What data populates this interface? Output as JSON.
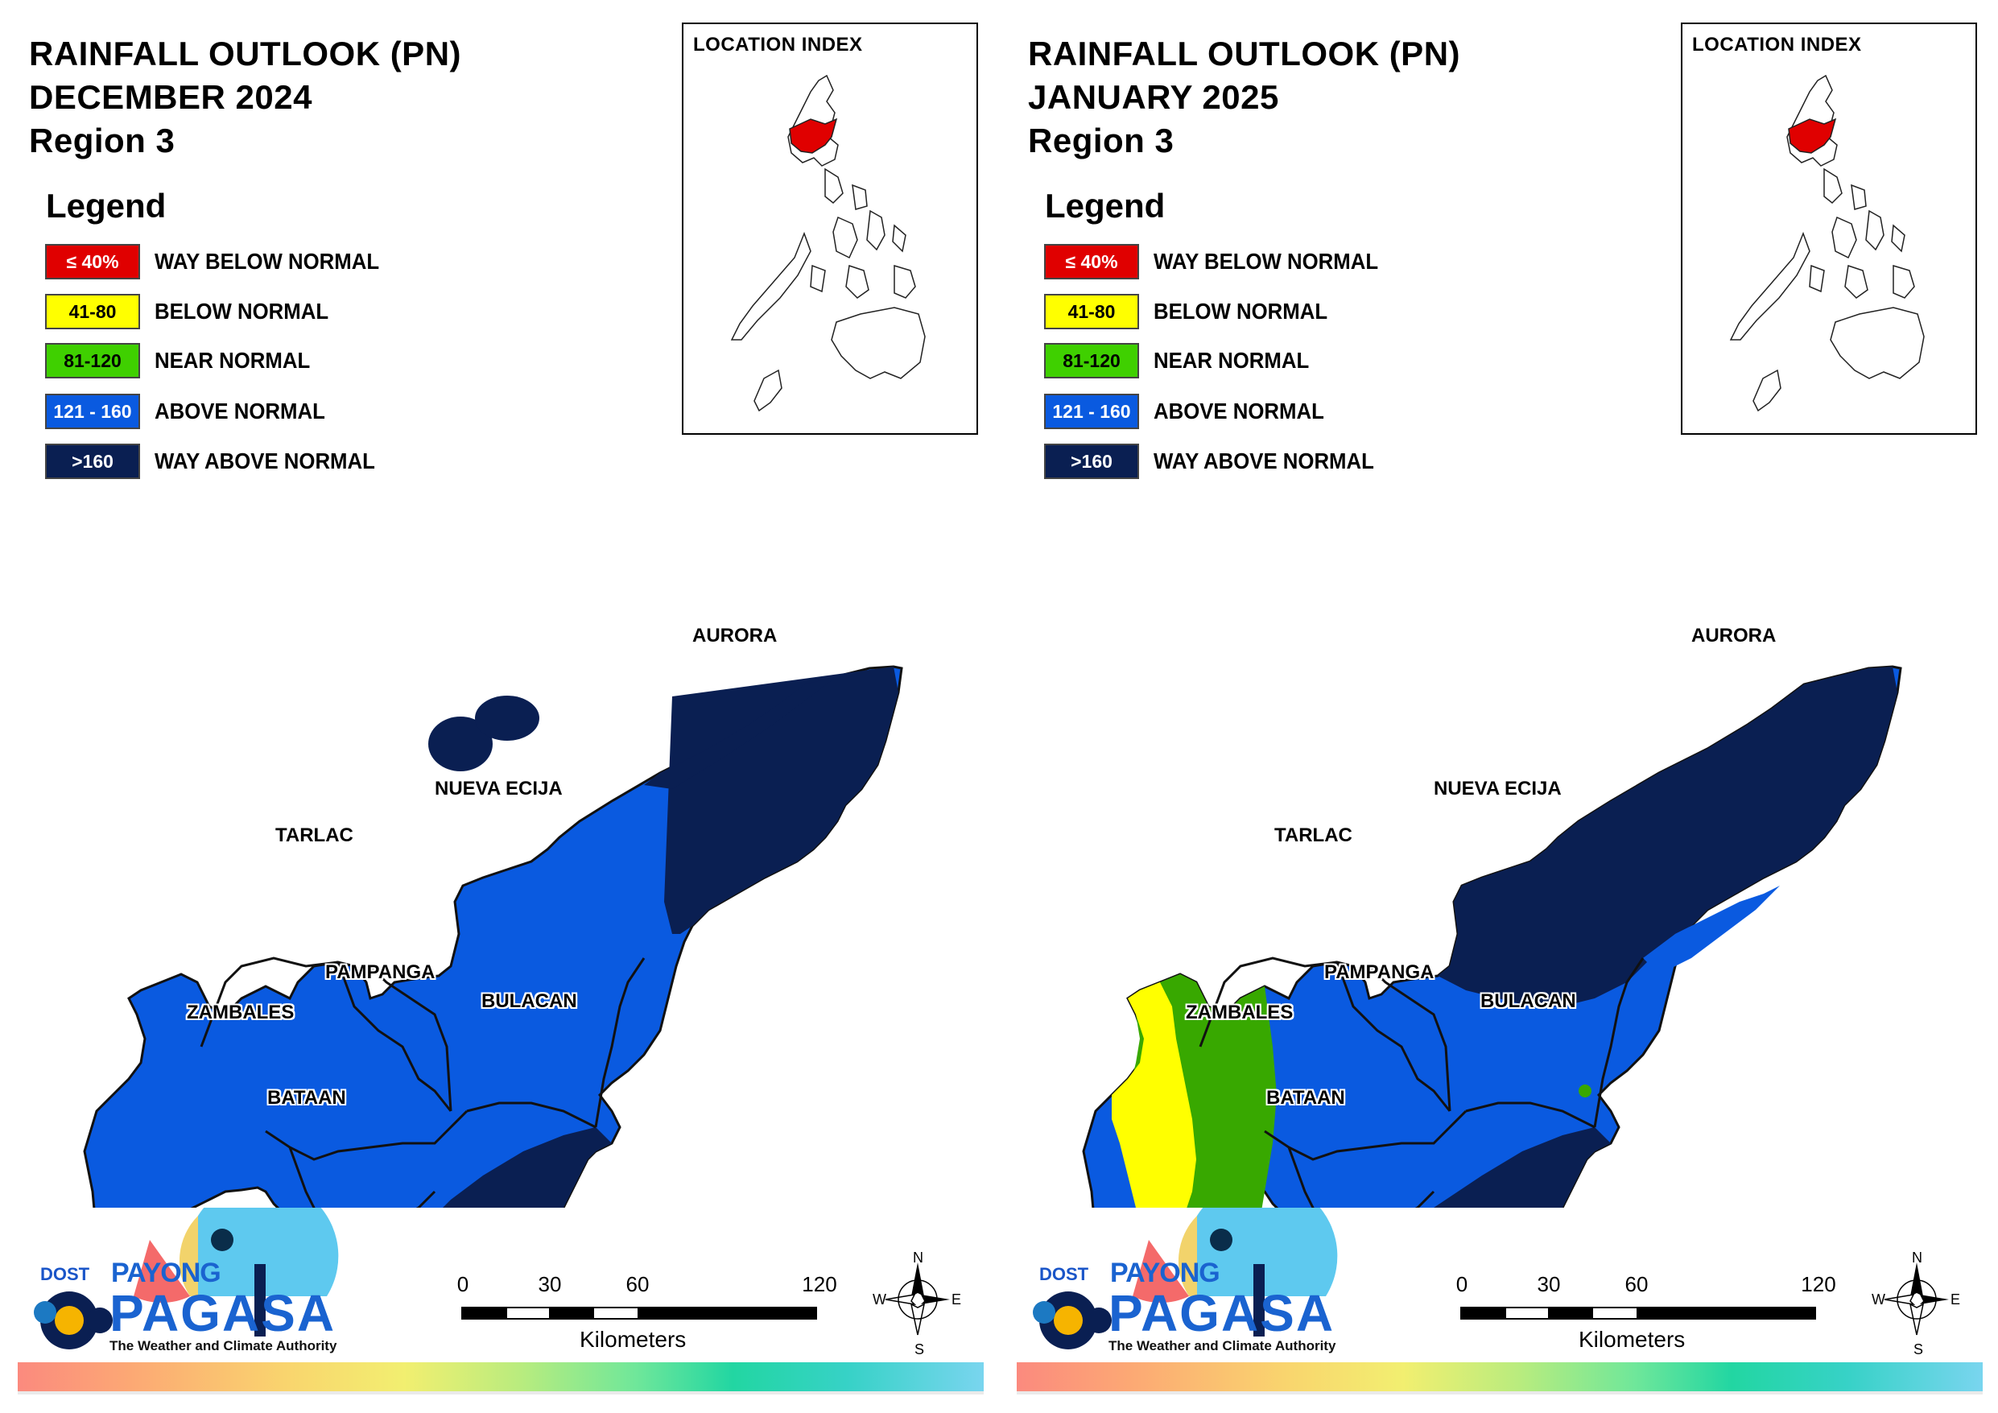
{
  "panels": [
    {
      "title_line1": "RAINFALL OUTLOOK (PN)",
      "title_line2": "DECEMBER 2024",
      "title_line3": "Region 3",
      "legend_title": "Legend",
      "legend": [
        {
          "range": "≤ 40%",
          "label": "WAY BELOW NORMAL",
          "color": "#e00000",
          "text_color": "#ffffff"
        },
        {
          "range": "41-80",
          "label": "BELOW NORMAL",
          "color": "#ffff00",
          "text_color": "#000000"
        },
        {
          "range": "81-120",
          "label": "NEAR NORMAL",
          "color": "#38a800",
          "text_color": "#000000"
        },
        {
          "range": "121 - 160",
          "label": "ABOVE NORMAL",
          "color": "#0a5ae0",
          "text_color": "#ffffff"
        },
        {
          "range": ">160",
          "label": "WAY ABOVE NORMAL",
          "color": "#0a1f52",
          "text_color": "#ffffff"
        }
      ],
      "location_index_label": "LOCATION INDEX",
      "provinces": [
        "AURORA",
        "NUEVA ECIJA",
        "TARLAC",
        "PAMPANGA",
        "BULACAN",
        "ZAMBALES",
        "BATAAN"
      ],
      "province_outlook": {
        "AURORA": "WAY ABOVE NORMAL (north), ABOVE NORMAL (south)",
        "NUEVA ECIJA": "ABOVE NORMAL, small WAY ABOVE NORMAL patch in north",
        "TARLAC": "ABOVE NORMAL",
        "PAMPANGA": "ABOVE NORMAL",
        "BULACAN": "ABOVE NORMAL (north), WAY ABOVE NORMAL (south)",
        "ZAMBALES": "ABOVE NORMAL",
        "BATAAN": "ABOVE NORMAL (north), WAY ABOVE NORMAL (south tip)"
      },
      "scale": {
        "ticks": [
          "0",
          "30",
          "60",
          "120"
        ],
        "unit": "Kilometers"
      },
      "compass": {
        "n": "N",
        "s": "S",
        "e": "E",
        "w": "W"
      },
      "logo": {
        "dost": "DOST",
        "payong": "PAYONG",
        "pagasa": "PAGASA",
        "tagline": "The Weather and Climate Authority"
      }
    },
    {
      "title_line1": "RAINFALL OUTLOOK (PN)",
      "title_line2": "JANUARY 2025",
      "title_line3": "Region 3",
      "legend_title": "Legend",
      "legend": [
        {
          "range": "≤ 40%",
          "label": "WAY BELOW NORMAL",
          "color": "#e00000",
          "text_color": "#ffffff"
        },
        {
          "range": "41-80",
          "label": "BELOW NORMAL",
          "color": "#ffff00",
          "text_color": "#000000"
        },
        {
          "range": "81-120",
          "label": "NEAR NORMAL",
          "color": "#38a800",
          "text_color": "#000000"
        },
        {
          "range": "121 - 160",
          "label": "ABOVE NORMAL",
          "color": "#0a5ae0",
          "text_color": "#ffffff"
        },
        {
          "range": ">160",
          "label": "WAY ABOVE NORMAL",
          "color": "#0a1f52",
          "text_color": "#ffffff"
        }
      ],
      "location_index_label": "LOCATION INDEX",
      "provinces": [
        "AURORA",
        "NUEVA ECIJA",
        "TARLAC",
        "PAMPANGA",
        "BULACAN",
        "ZAMBALES",
        "BATAAN"
      ],
      "province_outlook": {
        "AURORA": "WAY ABOVE NORMAL (north), ABOVE NORMAL (south)",
        "NUEVA ECIJA": "WAY ABOVE NORMAL (north), ABOVE NORMAL (south)",
        "TARLAC": "NEAR NORMAL (west), ABOVE NORMAL (east)",
        "PAMPANGA": "ABOVE NORMAL",
        "BULACAN": "ABOVE NORMAL (north), WAY ABOVE NORMAL (south)",
        "ZAMBALES": "BELOW NORMAL (coast), NEAR NORMAL (inland)",
        "BATAAN": "ABOVE NORMAL (north), WAY ABOVE NORMAL (south tip)"
      },
      "scale": {
        "ticks": [
          "0",
          "30",
          "60",
          "120"
        ],
        "unit": "Kilometers"
      },
      "compass": {
        "n": "N",
        "s": "S",
        "e": "E",
        "w": "W"
      },
      "logo": {
        "dost": "DOST",
        "payong": "PAYONG",
        "pagasa": "PAGASA",
        "tagline": "The Weather and Climate Authority"
      }
    }
  ]
}
